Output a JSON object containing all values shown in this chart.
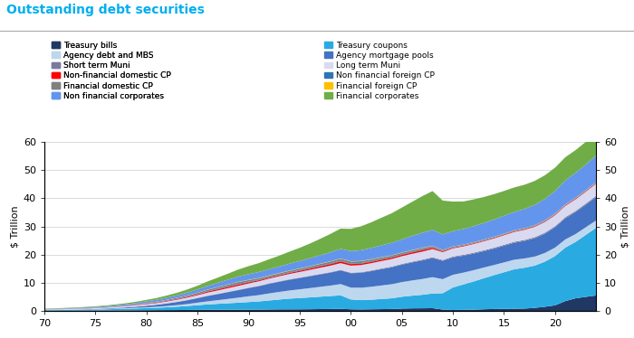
{
  "title": "Outstanding debt securities",
  "ylabel": "$ Trillion",
  "ylabel_right": "$ Trillion",
  "title_color": "#00AEEF",
  "yticks": [
    0,
    10,
    20,
    30,
    40,
    50,
    60
  ],
  "years": [
    1970,
    1971,
    1972,
    1973,
    1974,
    1975,
    1976,
    1977,
    1978,
    1979,
    1980,
    1981,
    1982,
    1983,
    1984,
    1985,
    1986,
    1987,
    1988,
    1989,
    1990,
    1991,
    1992,
    1993,
    1994,
    1995,
    1996,
    1997,
    1998,
    1999,
    2000,
    2001,
    2002,
    2003,
    2004,
    2005,
    2006,
    2007,
    2008,
    2009,
    2010,
    2011,
    2012,
    2013,
    2014,
    2015,
    2016,
    2017,
    2018,
    2019,
    2020,
    2021,
    2022,
    2023,
    2024
  ],
  "xtick_positions": [
    1970,
    1975,
    1980,
    1985,
    1990,
    1995,
    2000,
    2005,
    2010,
    2015,
    2020
  ],
  "xticklabels": [
    "70",
    "75",
    "80",
    "85",
    "90",
    "95",
    "00",
    "05",
    "10",
    "15",
    "20"
  ],
  "series": [
    {
      "name": "Treasury bills",
      "color": "#1F3864",
      "values": [
        0.08,
        0.09,
        0.1,
        0.11,
        0.14,
        0.16,
        0.18,
        0.2,
        0.22,
        0.24,
        0.26,
        0.29,
        0.31,
        0.33,
        0.36,
        0.4,
        0.43,
        0.44,
        0.44,
        0.44,
        0.47,
        0.49,
        0.53,
        0.57,
        0.58,
        0.59,
        0.62,
        0.67,
        0.7,
        0.75,
        0.6,
        0.55,
        0.6,
        0.65,
        0.7,
        0.85,
        0.93,
        0.95,
        1.0,
        0.5,
        0.35,
        0.4,
        0.45,
        0.6,
        0.7,
        0.75,
        0.8,
        0.85,
        1.1,
        1.5,
        2.0,
        3.5,
        4.5,
        5.0,
        5.5
      ]
    },
    {
      "name": "Treasury coupons",
      "color": "#29ABE2",
      "values": [
        0.2,
        0.22,
        0.25,
        0.28,
        0.3,
        0.35,
        0.4,
        0.48,
        0.55,
        0.65,
        0.75,
        0.85,
        1.0,
        1.2,
        1.4,
        1.65,
        1.9,
        2.1,
        2.3,
        2.5,
        2.7,
        2.9,
        3.2,
        3.5,
        3.8,
        4.0,
        4.2,
        4.4,
        4.6,
        4.8,
        3.5,
        3.3,
        3.4,
        3.6,
        3.8,
        4.2,
        4.5,
        4.8,
        5.2,
        5.8,
        8.0,
        9.0,
        10.0,
        11.0,
        12.0,
        13.0,
        14.0,
        14.5,
        15.0,
        16.0,
        17.5,
        19.0,
        20.0,
        22.0,
        24.0
      ]
    },
    {
      "name": "Agency debt and MBS",
      "color": "#BDD7EE",
      "values": [
        0.05,
        0.06,
        0.07,
        0.08,
        0.09,
        0.1,
        0.12,
        0.15,
        0.18,
        0.22,
        0.28,
        0.35,
        0.45,
        0.55,
        0.7,
        0.9,
        1.1,
        1.3,
        1.55,
        1.8,
        2.05,
        2.25,
        2.5,
        2.7,
        2.9,
        3.1,
        3.3,
        3.5,
        3.7,
        4.0,
        4.2,
        4.4,
        4.6,
        4.8,
        5.0,
        5.2,
        5.4,
        5.6,
        5.8,
        5.0,
        4.5,
        4.2,
        4.0,
        3.8,
        3.6,
        3.5,
        3.4,
        3.3,
        3.2,
        3.1,
        3.0,
        2.9,
        2.8,
        2.7,
        2.6
      ]
    },
    {
      "name": "Agency mortgage pools",
      "color": "#4472C4",
      "values": [
        0.02,
        0.03,
        0.04,
        0.06,
        0.08,
        0.12,
        0.16,
        0.22,
        0.3,
        0.4,
        0.55,
        0.7,
        0.9,
        1.1,
        1.35,
        1.6,
        1.9,
        2.15,
        2.4,
        2.65,
        2.9,
        3.15,
        3.4,
        3.6,
        3.8,
        4.0,
        4.2,
        4.4,
        4.6,
        4.85,
        5.1,
        5.3,
        5.55,
        5.8,
        6.0,
        6.2,
        6.4,
        6.6,
        6.8,
        6.5,
        6.2,
        6.0,
        5.9,
        5.8,
        5.8,
        5.9,
        6.0,
        6.2,
        6.5,
        6.8,
        7.2,
        7.5,
        7.8,
        8.0,
        8.3
      ]
    },
    {
      "name": "Short term Muni",
      "color": "#7B7B9F",
      "values": [
        0.01,
        0.01,
        0.01,
        0.02,
        0.02,
        0.02,
        0.03,
        0.03,
        0.04,
        0.04,
        0.05,
        0.06,
        0.07,
        0.08,
        0.09,
        0.1,
        0.11,
        0.12,
        0.13,
        0.14,
        0.15,
        0.15,
        0.16,
        0.16,
        0.17,
        0.17,
        0.18,
        0.18,
        0.19,
        0.19,
        0.2,
        0.21,
        0.22,
        0.23,
        0.24,
        0.25,
        0.26,
        0.27,
        0.28,
        0.28,
        0.29,
        0.3,
        0.31,
        0.32,
        0.33,
        0.34,
        0.35,
        0.36,
        0.37,
        0.38,
        0.39,
        0.4,
        0.41,
        0.42,
        0.43
      ]
    },
    {
      "name": "Long term Muni",
      "color": "#D9D9F0",
      "values": [
        0.15,
        0.17,
        0.19,
        0.21,
        0.23,
        0.27,
        0.31,
        0.35,
        0.4,
        0.45,
        0.5,
        0.55,
        0.65,
        0.75,
        0.85,
        0.95,
        1.1,
        1.2,
        1.3,
        1.4,
        1.5,
        1.6,
        1.7,
        1.8,
        1.9,
        2.0,
        2.1,
        2.2,
        2.3,
        2.4,
        2.5,
        2.55,
        2.6,
        2.65,
        2.7,
        2.75,
        2.8,
        2.85,
        2.9,
        2.8,
        2.9,
        3.0,
        3.1,
        3.2,
        3.3,
        3.4,
        3.5,
        3.6,
        3.7,
        3.8,
        3.9,
        4.0,
        4.1,
        4.2,
        4.3
      ]
    },
    {
      "name": "Non-financial domestic CP",
      "color": "#FF0000",
      "values": [
        0.02,
        0.02,
        0.03,
        0.04,
        0.05,
        0.05,
        0.06,
        0.08,
        0.1,
        0.12,
        0.15,
        0.17,
        0.19,
        0.21,
        0.25,
        0.3,
        0.36,
        0.4,
        0.44,
        0.47,
        0.4,
        0.35,
        0.33,
        0.34,
        0.37,
        0.4,
        0.44,
        0.5,
        0.55,
        0.6,
        0.55,
        0.5,
        0.48,
        0.47,
        0.46,
        0.45,
        0.5,
        0.55,
        0.45,
        0.3,
        0.25,
        0.23,
        0.22,
        0.22,
        0.22,
        0.22,
        0.22,
        0.22,
        0.22,
        0.22,
        0.22,
        0.22,
        0.22,
        0.22,
        0.22
      ]
    },
    {
      "name": "Non financial foreign CP",
      "color": "#2E75B6",
      "values": [
        0.01,
        0.01,
        0.01,
        0.01,
        0.02,
        0.02,
        0.02,
        0.03,
        0.04,
        0.05,
        0.06,
        0.07,
        0.08,
        0.09,
        0.1,
        0.11,
        0.13,
        0.15,
        0.17,
        0.19,
        0.2,
        0.2,
        0.2,
        0.2,
        0.2,
        0.2,
        0.2,
        0.2,
        0.2,
        0.2,
        0.2,
        0.2,
        0.2,
        0.2,
        0.2,
        0.2,
        0.2,
        0.2,
        0.15,
        0.1,
        0.1,
        0.1,
        0.1,
        0.1,
        0.1,
        0.1,
        0.1,
        0.1,
        0.1,
        0.1,
        0.1,
        0.1,
        0.1,
        0.1,
        0.1
      ]
    },
    {
      "name": "Financial domestic CP",
      "color": "#808080",
      "values": [
        0.02,
        0.02,
        0.03,
        0.04,
        0.05,
        0.06,
        0.08,
        0.1,
        0.12,
        0.15,
        0.2,
        0.25,
        0.3,
        0.35,
        0.4,
        0.45,
        0.52,
        0.58,
        0.63,
        0.68,
        0.6,
        0.55,
        0.52,
        0.52,
        0.54,
        0.56,
        0.6,
        0.65,
        0.7,
        0.75,
        0.7,
        0.65,
        0.62,
        0.6,
        0.58,
        0.56,
        0.55,
        0.55,
        0.5,
        0.35,
        0.3,
        0.28,
        0.26,
        0.25,
        0.24,
        0.24,
        0.23,
        0.23,
        0.22,
        0.22,
        0.22,
        0.22,
        0.22,
        0.22,
        0.22
      ]
    },
    {
      "name": "Financial foreign CP",
      "color": "#FFC000",
      "values": [
        0.01,
        0.01,
        0.01,
        0.01,
        0.01,
        0.01,
        0.01,
        0.02,
        0.02,
        0.03,
        0.03,
        0.04,
        0.04,
        0.05,
        0.05,
        0.06,
        0.07,
        0.08,
        0.09,
        0.1,
        0.1,
        0.1,
        0.1,
        0.1,
        0.1,
        0.1,
        0.1,
        0.1,
        0.1,
        0.1,
        0.1,
        0.1,
        0.1,
        0.1,
        0.1,
        0.1,
        0.1,
        0.1,
        0.08,
        0.06,
        0.05,
        0.05,
        0.05,
        0.05,
        0.05,
        0.05,
        0.05,
        0.05,
        0.05,
        0.05,
        0.05,
        0.05,
        0.05,
        0.05,
        0.05
      ]
    },
    {
      "name": "Non financial corporates",
      "color": "#6495ED",
      "values": [
        0.15,
        0.17,
        0.19,
        0.22,
        0.25,
        0.28,
        0.32,
        0.37,
        0.43,
        0.5,
        0.58,
        0.66,
        0.76,
        0.87,
        1.0,
        1.15,
        1.32,
        1.5,
        1.68,
        1.85,
        2.0,
        2.1,
        2.2,
        2.3,
        2.45,
        2.6,
        2.8,
        3.0,
        3.2,
        3.4,
        3.6,
        3.8,
        4.0,
        4.2,
        4.4,
        4.65,
        5.0,
        5.3,
        5.6,
        5.5,
        5.4,
        5.5,
        5.7,
        5.9,
        6.1,
        6.3,
        6.5,
        6.8,
        7.2,
        7.6,
        8.0,
        8.5,
        8.8,
        9.1,
        9.4
      ]
    },
    {
      "name": "Financial corporates",
      "color": "#70AD47",
      "values": [
        0.1,
        0.12,
        0.14,
        0.16,
        0.19,
        0.22,
        0.26,
        0.31,
        0.37,
        0.44,
        0.52,
        0.62,
        0.75,
        0.9,
        1.08,
        1.3,
        1.57,
        1.85,
        2.15,
        2.5,
        2.85,
        3.15,
        3.5,
        3.85,
        4.25,
        4.7,
        5.2,
        5.8,
        6.5,
        7.2,
        7.9,
        8.5,
        9.1,
        9.8,
        10.5,
        11.3,
        12.1,
        13.0,
        13.8,
        12.0,
        10.5,
        9.8,
        9.5,
        9.2,
        9.0,
        8.8,
        8.7,
        8.6,
        8.5,
        8.4,
        8.3,
        8.2,
        8.1,
        8.0,
        7.9
      ]
    }
  ]
}
